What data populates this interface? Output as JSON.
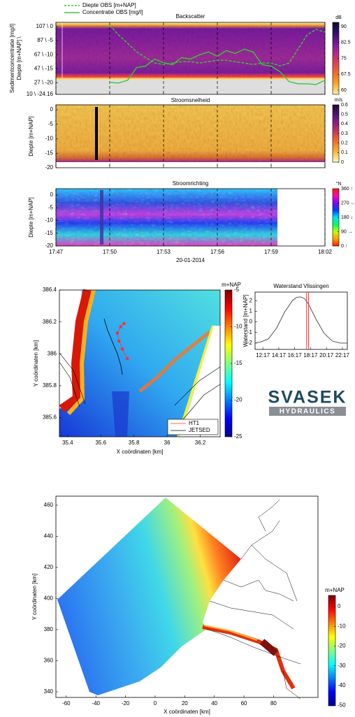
{
  "chart_data": [
    {
      "type": "heatmap",
      "title": "Backscatter",
      "ylabel": [
        "Sedimentconcentratie [mg/l]",
        "Diepte [m+NAP] \\"
      ],
      "x": [
        1070,
        1070.5,
        1071,
        1071.5,
        1072,
        1072.5,
        1073,
        1073.5,
        1074,
        1074.5,
        1075,
        1075.5,
        1076,
        1076.5,
        1077,
        1077.5,
        1078,
        1078.5,
        1079,
        1079.5,
        1080,
        1080.5,
        1081,
        1081.5,
        1082
      ],
      "series": [
        {
          "name": "Diepte OBS [m+NAP]",
          "color": "#33cc33",
          "line_style": "dashed",
          "values": [
            0.5,
            -3,
            -6,
            -9,
            -11,
            -13,
            -13.5,
            -13,
            -12.5,
            -12.5,
            -13,
            -12.5,
            -12,
            -12,
            -12.5,
            -13,
            -13.5,
            -13,
            -13,
            -14,
            -13,
            -8,
            -3,
            -1,
            -2
          ]
        },
        {
          "name": "Concentratie OBS [mg/l]",
          "color": "#33cc33",
          "line_style": "solid",
          "axis": "y2",
          "values": [
            27,
            26,
            30,
            48,
            50,
            60,
            55,
            52,
            62,
            60,
            66,
            70,
            64,
            72,
            68,
            74,
            70,
            52,
            50,
            42,
            28,
            25,
            25,
            24,
            30
          ]
        }
      ],
      "legend": "upper left",
      "xlim": [
        1067,
        1082
      ],
      "xticks": [
        1067,
        1070,
        1073,
        1076,
        1079,
        1082
      ],
      "show_xtick_labels": false,
      "grid": "x",
      "ylim": [
        -24.16,
        1.5
      ],
      "yticks": [
        {
          "value": 0,
          "label": "107 \\ 0"
        },
        {
          "value": -5,
          "label": "87 \\ -5"
        },
        {
          "value": -10,
          "label": "67 \\ -10"
        },
        {
          "value": -15,
          "label": "47 \\ -15"
        },
        {
          "value": -20,
          "label": "27 \\ -20"
        },
        {
          "value": -24.16,
          "label": "10 \\ -24.16"
        }
      ],
      "y2lim": [
        10,
        112
      ],
      "colorbar": {
        "label": "dB",
        "lim": [
          58,
          92
        ],
        "ticks": [
          90,
          82.5,
          75,
          67.5,
          60
        ],
        "colormap": [
          "#0a0a30",
          "#3a1070",
          "#8a20a0",
          "#d03070",
          "#f06030",
          "#f8a020",
          "#fff0a0"
        ]
      }
    },
    {
      "type": "heatmap",
      "title": "Stroomsnelheid",
      "ylabel": [
        "Diepte [m+NAP]"
      ],
      "xlim": [
        1067,
        1082
      ],
      "xticks": [
        1067,
        1070,
        1073,
        1076,
        1079,
        1082
      ],
      "show_xtick_labels": false,
      "grid": "x",
      "ylim": [
        -20,
        1.7
      ],
      "yticks": [
        0,
        -5,
        -10,
        -15,
        -20
      ],
      "colorbar": {
        "label": "m/s",
        "lim": [
          0,
          0.6
        ],
        "ticks": [
          0.6,
          0.5,
          0.4,
          0.3,
          0.2,
          0.1,
          0
        ],
        "colormap": [
          "#1a0a30",
          "#5a1880",
          "#b02870",
          "#f06030",
          "#f8b030",
          "#fff8c0"
        ]
      }
    },
    {
      "type": "heatmap",
      "title": "Stroomrichting",
      "ylabel": [
        "Diepte [m+NAP]"
      ],
      "xlabel": "20-01-2014",
      "xlim": [
        1067,
        1082
      ],
      "xticks": [
        {
          "value": 1067,
          "label": "17:47"
        },
        {
          "value": 1070,
          "label": "17:50"
        },
        {
          "value": 1073,
          "label": "17:53"
        },
        {
          "value": 1076,
          "label": "17:56"
        },
        {
          "value": 1079,
          "label": "17:59"
        },
        {
          "value": 1082,
          "label": "18:02"
        }
      ],
      "grid": "x",
      "ylim": [
        -20,
        2.5
      ],
      "yticks": [
        0,
        -5,
        -10,
        -15,
        -20
      ],
      "colorbar": {
        "label": "°N",
        "lim": [
          0,
          360
        ],
        "ticks": [
          {
            "value": 360,
            "label": "360 ↑"
          },
          {
            "value": 270,
            "label": "270 ←"
          },
          {
            "value": 180,
            "label": "180 ↓"
          },
          {
            "value": 90,
            "label": "90 →"
          },
          {
            "value": 0,
            "label": "0 ↑"
          }
        ],
        "colormap": [
          "#ff2000",
          "#ff00c0",
          "#8000ff",
          "#0040ff",
          "#00e0ff",
          "#00ff60",
          "#c0ff00",
          "#ffa000",
          "#ff2000"
        ]
      }
    },
    {
      "type": "map",
      "xlabel": "X coördinaten [km]",
      "ylabel": [
        "Y coördinaten [km]"
      ],
      "xlim": [
        35.35,
        36.32
      ],
      "xticks": [
        35.4,
        35.6,
        35.8,
        36,
        36.2
      ],
      "ylim": [
        385.48,
        386.4
      ],
      "yticks": [
        386.4,
        386.2,
        386,
        385.8,
        385.6
      ],
      "series": [
        {
          "name": "HT1",
          "color": "#ff3030",
          "marker": true,
          "x": [
            35.74,
            35.72,
            35.7,
            35.71,
            35.73,
            35.76
          ],
          "values": [
            386.19,
            386.17,
            386.13,
            386.08,
            386.03,
            385.97
          ]
        },
        {
          "name": "JETSED",
          "color": "#000000",
          "marker": false,
          "x": [
            35.62,
            35.64,
            35.66,
            35.68,
            35.7,
            35.72,
            35.73
          ],
          "values": [
            386.22,
            386.15,
            386.1,
            386.05,
            386,
            385.93,
            385.87
          ]
        }
      ],
      "legend": "lower right",
      "colorbar": {
        "label": "m+NAP",
        "lim": [
          -25,
          -5
        ],
        "ticks": [
          -5,
          -10,
          -15,
          -20,
          -25
        ],
        "colormap": [
          "#800000",
          "#ff0000",
          "#ff8000",
          "#ffff00",
          "#80ff80",
          "#00ffff",
          "#0080ff",
          "#0000ff",
          "#000090"
        ]
      }
    },
    {
      "type": "line",
      "title": "Waterstand Vlissingen",
      "ylabel": [
        "Waterstand [m+NAP]"
      ],
      "x": [
        11.3,
        12,
        13,
        14,
        15,
        16,
        16.5,
        17,
        17.5,
        18,
        19,
        20,
        21,
        22,
        22.9
      ],
      "values": [
        -2,
        -1.9,
        -1.6,
        -0.6,
        0.9,
        2,
        2.3,
        2.35,
        2.2,
        1.7,
        0.2,
        -1.1,
        -1.8,
        -2,
        -2
      ],
      "color": "#444444",
      "highlight_x": [
        17.78,
        18.03
      ],
      "highlight_color": "#ff3030",
      "xlim": [
        11.3,
        22.9
      ],
      "xticks": [
        {
          "value": 12.28,
          "label": "12:17"
        },
        {
          "value": 14.28,
          "label": "14:17"
        },
        {
          "value": 16.28,
          "label": "16:17"
        },
        {
          "value": 18.28,
          "label": "18:17"
        },
        {
          "value": 20.28,
          "label": "20:17"
        },
        {
          "value": 22.28,
          "label": "22:17"
        }
      ],
      "ylim": [
        -2.6,
        2.8
      ],
      "yticks": [
        2,
        1,
        0,
        -1,
        -2
      ]
    },
    {
      "type": "map",
      "xlabel": "X coördinaten [km]",
      "ylabel": [
        "Y coördinaten [km]"
      ],
      "xlim": [
        -67,
        110
      ],
      "xticks": [
        -60,
        -40,
        -20,
        0,
        20,
        40,
        60,
        80
      ],
      "ylim": [
        336.4,
        465.8
      ],
      "yticks": [
        460,
        440,
        420,
        400,
        380,
        360,
        340
      ],
      "colorbar": {
        "label": "m+NAP",
        "lim": [
          -50.3,
          5.7
        ],
        "ticks": [
          0,
          -10,
          -20,
          -30,
          -40,
          -50
        ],
        "colormap": [
          "#800000",
          "#ff0000",
          "#ff8000",
          "#ffff00",
          "#80ff80",
          "#00ffff",
          "#0080ff",
          "#0000ff",
          "#000090"
        ]
      }
    }
  ],
  "logo": {
    "name": "SVASEK",
    "sub": "HYDRAULICS"
  }
}
